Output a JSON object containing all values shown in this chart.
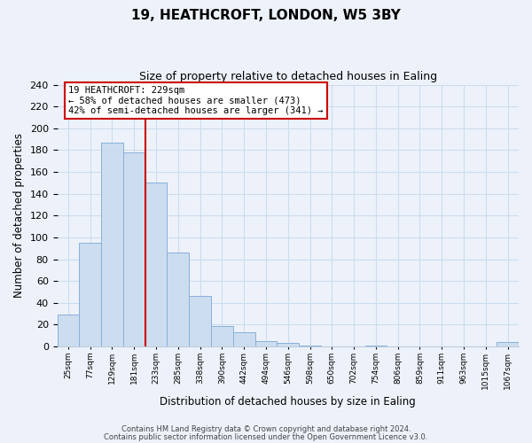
{
  "title": "19, HEATHCROFT, LONDON, W5 3BY",
  "subtitle": "Size of property relative to detached houses in Ealing",
  "xlabel": "Distribution of detached houses by size in Ealing",
  "ylabel": "Number of detached properties",
  "bar_color": "#ccddf0",
  "bar_edge_color": "#8ab0d8",
  "bin_labels": [
    "25sqm",
    "77sqm",
    "129sqm",
    "181sqm",
    "233sqm",
    "285sqm",
    "338sqm",
    "390sqm",
    "442sqm",
    "494sqm",
    "546sqm",
    "598sqm",
    "650sqm",
    "702sqm",
    "754sqm",
    "806sqm",
    "859sqm",
    "911sqm",
    "963sqm",
    "1015sqm",
    "1067sqm"
  ],
  "bar_heights": [
    29,
    95,
    187,
    178,
    150,
    86,
    46,
    19,
    13,
    5,
    3,
    1,
    0,
    0,
    1,
    0,
    0,
    0,
    0,
    0,
    4
  ],
  "vline_x_index": 3,
  "vline_color": "#cc0000",
  "annotation_title": "19 HEATHCROFT: 229sqm",
  "annotation_line1": "← 58% of detached houses are smaller (473)",
  "annotation_line2": "42% of semi-detached houses are larger (341) →",
  "annotation_box_color": "#ffffff",
  "annotation_box_edge": "#cc0000",
  "ylim": [
    0,
    240
  ],
  "yticks": [
    0,
    20,
    40,
    60,
    80,
    100,
    120,
    140,
    160,
    180,
    200,
    220,
    240
  ],
  "grid_color": "#ccddee",
  "footer1": "Contains HM Land Registry data © Crown copyright and database right 2024.",
  "footer2": "Contains public sector information licensed under the Open Government Licence v3.0.",
  "background_color": "#edf2fa"
}
